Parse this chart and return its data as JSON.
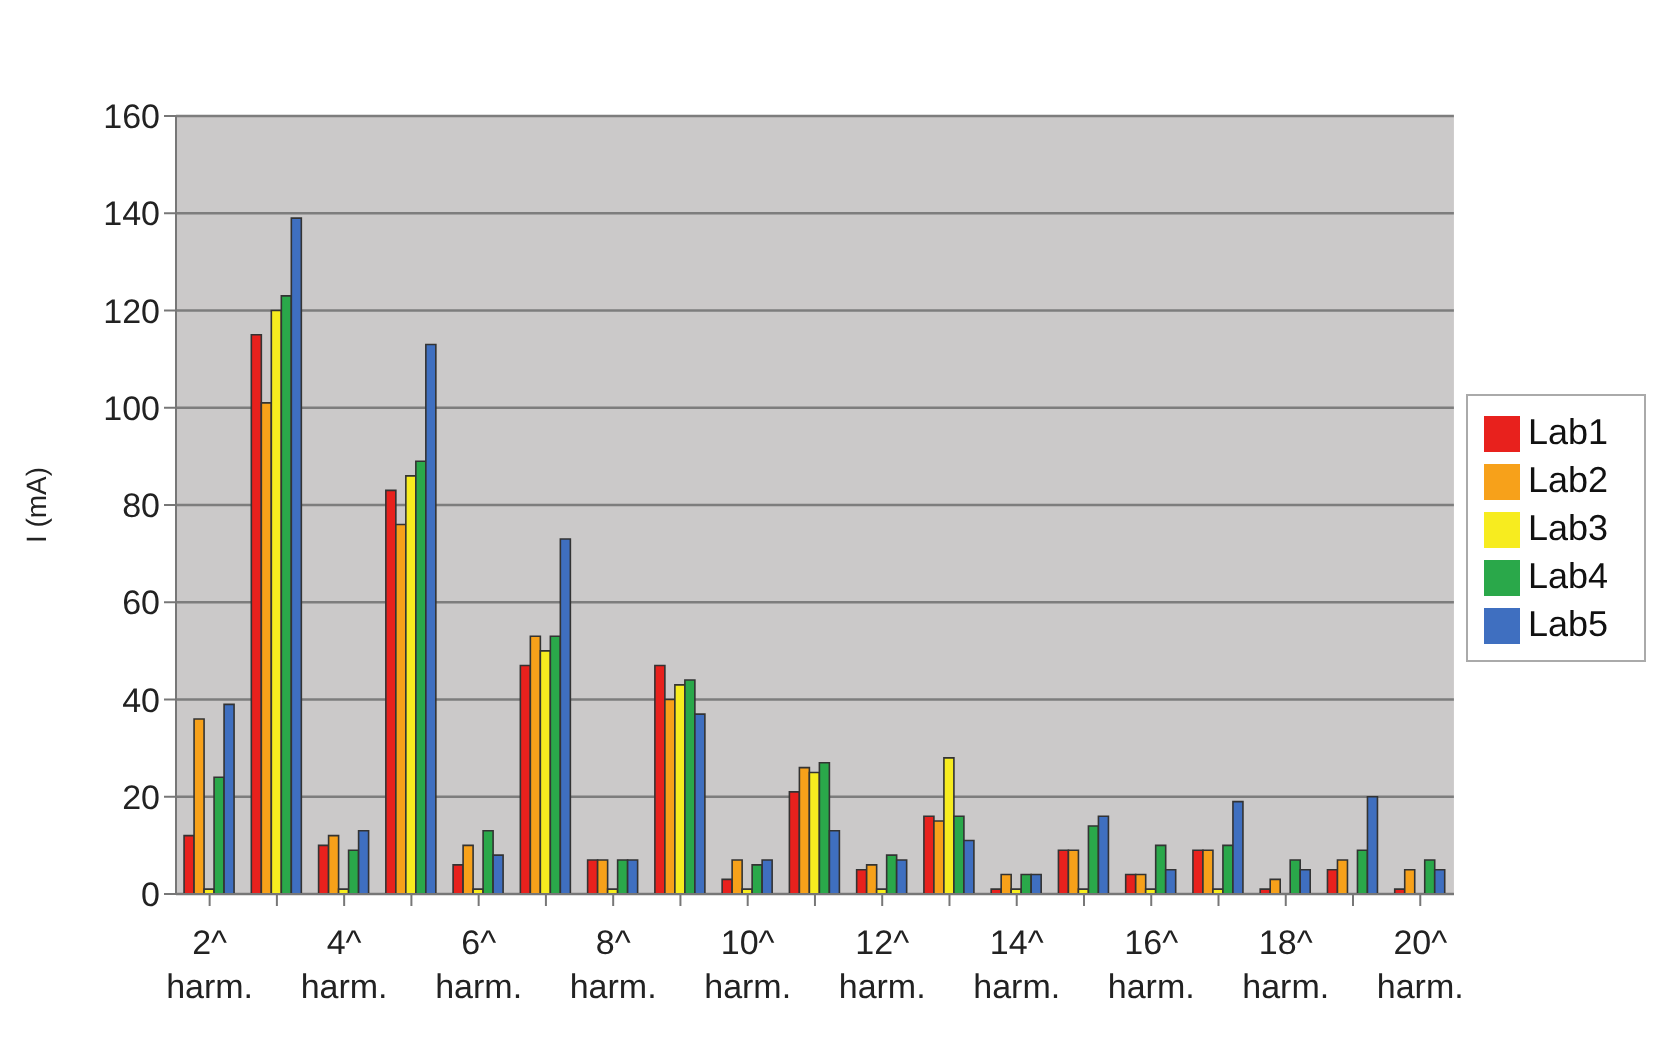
{
  "chart_data": {
    "type": "bar",
    "ylabel": "I (mA)",
    "categories": [
      "2^ harm.",
      null,
      "4^ harm.",
      null,
      "6^ harm.",
      null,
      "8^ harm.",
      null,
      "10^ harm.",
      null,
      "12^ harm.",
      null,
      "14^ harm.",
      null,
      "16^ harm.",
      null,
      "18^ harm.",
      null,
      "20^ harm."
    ],
    "series": [
      {
        "name": "Lab1",
        "color": "#e8211d",
        "values": [
          12,
          115,
          10,
          83,
          6,
          47,
          7,
          47,
          3,
          21,
          5,
          16,
          1,
          9,
          4,
          9,
          1,
          5,
          1
        ]
      },
      {
        "name": "Lab2",
        "color": "#f7a11a",
        "values": [
          36,
          101,
          12,
          76,
          10,
          53,
          7,
          40,
          7,
          26,
          6,
          15,
          4,
          9,
          4,
          9,
          3,
          7,
          5
        ]
      },
      {
        "name": "Lab3",
        "color": "#f7ec1f",
        "values": [
          1,
          120,
          1,
          86,
          1,
          50,
          1,
          43,
          1,
          25,
          1,
          28,
          1,
          1,
          1,
          1,
          0,
          0,
          0
        ]
      },
      {
        "name": "Lab4",
        "color": "#2aa84a",
        "values": [
          24,
          123,
          9,
          89,
          13,
          53,
          7,
          44,
          6,
          27,
          8,
          16,
          4,
          14,
          10,
          10,
          7,
          9,
          7
        ]
      },
      {
        "name": "Lab5",
        "color": "#3f6fc0",
        "values": [
          39,
          139,
          13,
          113,
          8,
          73,
          7,
          37,
          7,
          13,
          7,
          11,
          4,
          16,
          5,
          19,
          5,
          20,
          5
        ]
      }
    ],
    "ylim": [
      0,
      160
    ],
    "yticks": [
      0,
      20,
      40,
      60,
      80,
      100,
      120,
      140,
      160
    ],
    "grid": "y",
    "legend": "right"
  }
}
